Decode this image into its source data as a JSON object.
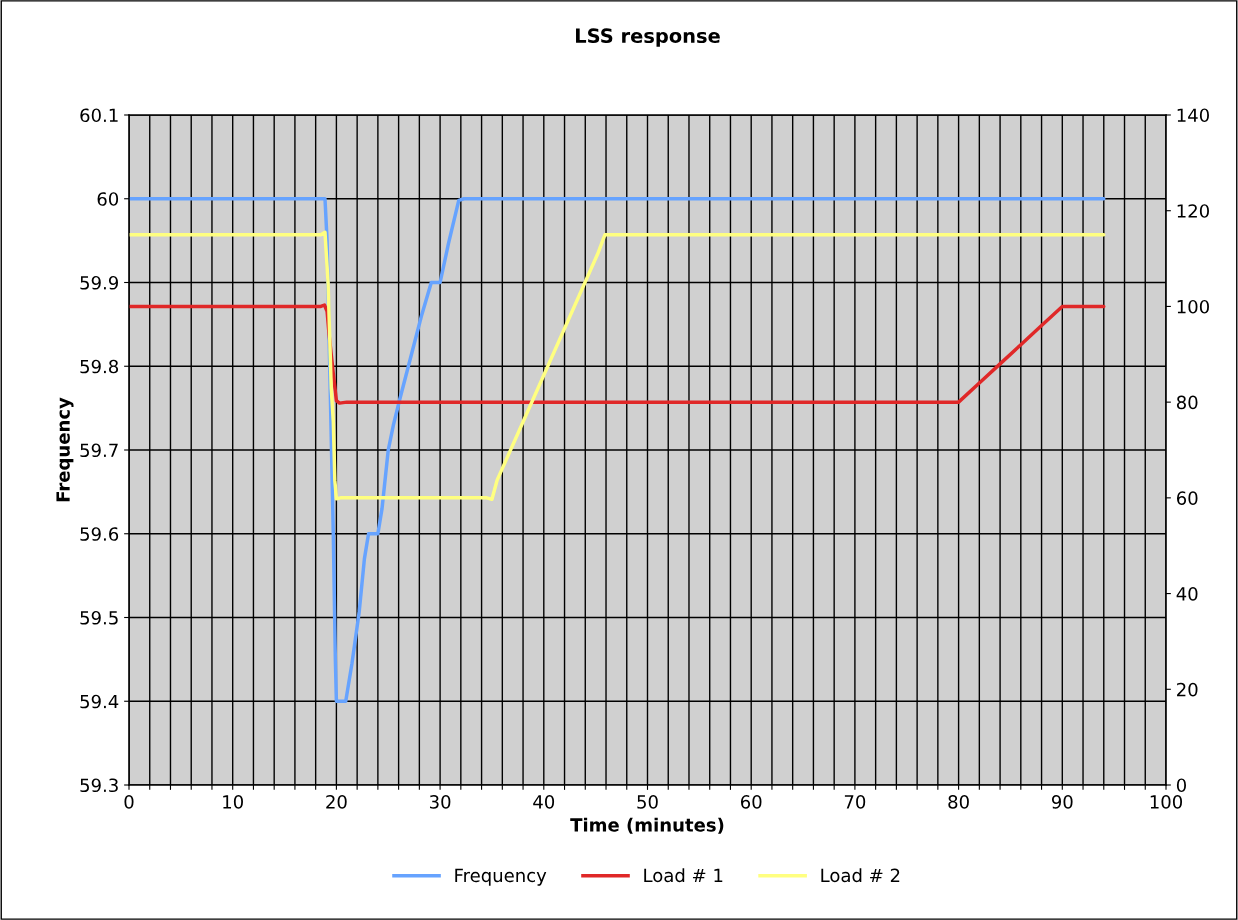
{
  "chart_data": {
    "type": "line",
    "title": "LSS response",
    "xlabel": "Time (minutes)",
    "ylabel": "Frequency",
    "xlim": [
      0,
      100
    ],
    "ylim": [
      59.3,
      60.1
    ],
    "y2lim": [
      0,
      140
    ],
    "xticks": [
      0,
      {
        "value": 2,
        "label": null
      },
      {
        "value": 4,
        "label": null
      },
      {
        "value": 6,
        "label": null
      },
      {
        "value": 8,
        "label": null
      },
      10,
      {
        "value": 12,
        "label": null
      },
      {
        "value": 14,
        "label": null
      },
      {
        "value": 16,
        "label": null
      },
      {
        "value": 18,
        "label": null
      },
      20,
      {
        "value": 22,
        "label": null
      },
      {
        "value": 24,
        "label": null
      },
      {
        "value": 26,
        "label": null
      },
      {
        "value": 28,
        "label": null
      },
      30,
      {
        "value": 32,
        "label": null
      },
      {
        "value": 34,
        "label": null
      },
      {
        "value": 36,
        "label": null
      },
      {
        "value": 38,
        "label": null
      },
      40,
      {
        "value": 42,
        "label": null
      },
      {
        "value": 44,
        "label": null
      },
      {
        "value": 46,
        "label": null
      },
      {
        "value": 48,
        "label": null
      },
      50,
      {
        "value": 52,
        "label": null
      },
      {
        "value": 54,
        "label": null
      },
      {
        "value": 56,
        "label": null
      },
      {
        "value": 58,
        "label": null
      },
      60,
      {
        "value": 62,
        "label": null
      },
      {
        "value": 64,
        "label": null
      },
      {
        "value": 66,
        "label": null
      },
      {
        "value": 68,
        "label": null
      },
      70,
      {
        "value": 72,
        "label": null
      },
      {
        "value": 74,
        "label": null
      },
      {
        "value": 76,
        "label": null
      },
      {
        "value": 78,
        "label": null
      },
      80,
      {
        "value": 82,
        "label": null
      },
      {
        "value": 84,
        "label": null
      },
      {
        "value": 86,
        "label": null
      },
      {
        "value": 88,
        "label": null
      },
      90,
      {
        "value": 92,
        "label": null
      },
      {
        "value": 94,
        "label": null
      },
      {
        "value": 96,
        "label": null
      },
      {
        "value": 98,
        "label": null
      },
      100
    ],
    "yticks": [
      59.3,
      59.4,
      59.5,
      59.6,
      59.7,
      59.8,
      59.9,
      60,
      60.1
    ],
    "y2ticks": [
      0,
      20,
      40,
      60,
      80,
      100,
      120,
      140
    ],
    "grid": true,
    "legend": "bottom",
    "marker": "none",
    "line_style": "solid",
    "series": [
      {
        "name": "Frequency",
        "color": "#66a3ff",
        "x": [
          0,
          18.5,
          18.9,
          19.1,
          19.7,
          19.9,
          20.0,
          20.9,
          21.5,
          22.2,
          22.7,
          23.1,
          24.0,
          24.4,
          25.0,
          25.5,
          26.1,
          28.2,
          29.15,
          30.0,
          30.8,
          31.8,
          32.3,
          94
        ],
        "values": [
          60.0,
          60.0,
          60.0,
          59.95,
          59.6,
          59.45,
          59.4,
          59.4,
          59.445,
          59.507,
          59.57,
          59.6,
          59.6,
          59.63,
          59.7,
          59.73,
          59.76,
          59.86,
          59.9,
          59.9,
          59.946,
          59.998,
          60.0,
          60.0
        ]
      },
      {
        "name": "Load # 1",
        "color": "#e02828",
        "axis": "y2",
        "x": [
          0,
          18.5,
          18.85,
          19.1,
          19.3,
          19.7,
          20.0,
          20.3,
          21,
          80,
          82,
          84,
          86,
          88,
          90,
          94
        ],
        "values": [
          100,
          100,
          100.3,
          99,
          94,
          86,
          80.3,
          79.8,
          80,
          80,
          84,
          88,
          92,
          96,
          100,
          100
        ]
      },
      {
        "name": "Load # 2",
        "color": "#ffff80",
        "axis": "y2",
        "x": [
          0,
          18.5,
          18.9,
          19.2,
          19.5,
          19.7,
          19.85,
          20.0,
          20.4,
          34.5,
          35.0,
          35.5,
          45.2,
          45.9,
          94
        ],
        "values": [
          115,
          115,
          115.5,
          104.8,
          83,
          76,
          63.7,
          59.8,
          60,
          60,
          59.7,
          63.7,
          111,
          115,
          115
        ]
      }
    ]
  }
}
